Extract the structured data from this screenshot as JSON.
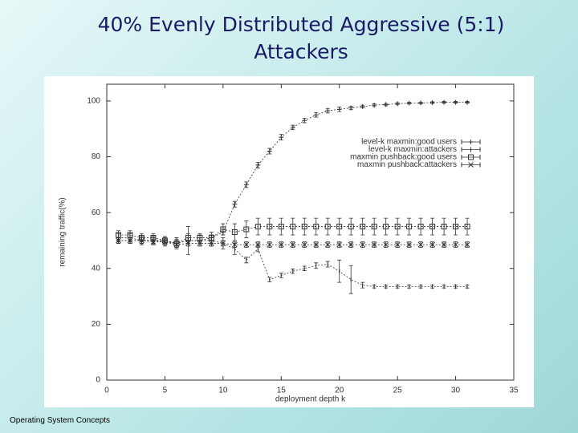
{
  "title": [
    "40% Evenly Distributed Aggressive (5:1)",
    "Attackers"
  ],
  "footer": "Operating System Concepts",
  "chart_data": {
    "type": "line",
    "x_label": "deployment depth k",
    "y_label": "remaining traffic(%)",
    "x": [
      1,
      2,
      3,
      4,
      5,
      6,
      7,
      8,
      9,
      10,
      11,
      12,
      13,
      14,
      15,
      16,
      17,
      18,
      19,
      20,
      21,
      22,
      23,
      24,
      25,
      26,
      27,
      28,
      29,
      30,
      31
    ],
    "xlim": [
      0,
      35
    ],
    "xticks": [
      0,
      5,
      10,
      15,
      20,
      25,
      30,
      35
    ],
    "ylim": [
      0,
      106
    ],
    "yticks": [
      0,
      20,
      40,
      60,
      80,
      100
    ],
    "legend": "top-right",
    "series": [
      {
        "name": "level-k maxmin:good users",
        "color": "#333333",
        "marker": "plus",
        "values": [
          50,
          50,
          50,
          50,
          50,
          49,
          50,
          50,
          51,
          53,
          63,
          70,
          77,
          82,
          87,
          90.5,
          93,
          95,
          96.5,
          97,
          97.5,
          98,
          98.5,
          98.7,
          99,
          99.2,
          99.3,
          99.4,
          99.5,
          99.5,
          99.5
        ],
        "errors": [
          1,
          1,
          1,
          1,
          1,
          1,
          1,
          1,
          1,
          1,
          1,
          1,
          1,
          1,
          1,
          0.8,
          0.8,
          0.8,
          0.8,
          0.8,
          0.6,
          0.5,
          0.5,
          0.4,
          0.4,
          0.3,
          0.3,
          0.3,
          0.3,
          0.3,
          0.3
        ]
      },
      {
        "name": "level-k maxmin:attackers",
        "color": "#333333",
        "marker": "bar",
        "values": [
          51,
          51,
          50,
          50,
          49.5,
          49,
          50,
          50,
          50,
          49,
          47,
          43,
          47,
          36,
          37.5,
          39,
          40,
          41,
          41.5,
          39,
          36,
          34,
          33.5,
          33.5,
          33.5,
          33.5,
          33.5,
          33.5,
          33.5,
          33.5,
          33.5
        ],
        "errors": [
          1.5,
          1.5,
          1.5,
          1.5,
          1.5,
          2,
          5,
          2,
          2,
          2,
          2,
          1,
          1,
          0.8,
          0.8,
          0.8,
          0.8,
          1,
          1,
          4,
          5,
          1,
          0.5,
          0.5,
          0.5,
          0.5,
          0.5,
          0.5,
          0.5,
          0.5,
          0.5
        ]
      },
      {
        "name": "maxmin pushback:good users",
        "color": "#333333",
        "marker": "square",
        "values": [
          52,
          52,
          51,
          51,
          50,
          49,
          51,
          51,
          51,
          54,
          53,
          54,
          55,
          55,
          55,
          55,
          55,
          55,
          55,
          55,
          55,
          55,
          55,
          55,
          55,
          55,
          55,
          55,
          55,
          55,
          55
        ],
        "errors": [
          1.5,
          1.5,
          1.5,
          1.5,
          1.5,
          1.5,
          1.5,
          1.5,
          2,
          2,
          3,
          3,
          3,
          3,
          3,
          3,
          3,
          3,
          3,
          3,
          3,
          3,
          3,
          3,
          3,
          3,
          3,
          3,
          3,
          3,
          3
        ]
      },
      {
        "name": "maxmin pushback:attackers",
        "color": "#333333",
        "marker": "cross",
        "values": [
          50,
          50,
          50,
          49.5,
          49.5,
          48.5,
          49,
          49,
          49,
          49,
          48.5,
          48.5,
          48.5,
          48.5,
          48.5,
          48.5,
          48.5,
          48.5,
          48.5,
          48.5,
          48.5,
          48.5,
          48.5,
          48.5,
          48.5,
          48.5,
          48.5,
          48.5,
          48.5,
          48.5,
          48.5
        ],
        "errors": [
          1,
          1,
          1,
          1,
          1,
          1,
          1,
          1,
          1,
          1,
          1,
          1,
          1,
          1,
          1,
          1,
          1,
          1,
          1,
          1,
          1,
          1,
          1,
          1,
          1,
          1,
          1,
          1,
          1,
          1,
          1
        ]
      }
    ]
  }
}
